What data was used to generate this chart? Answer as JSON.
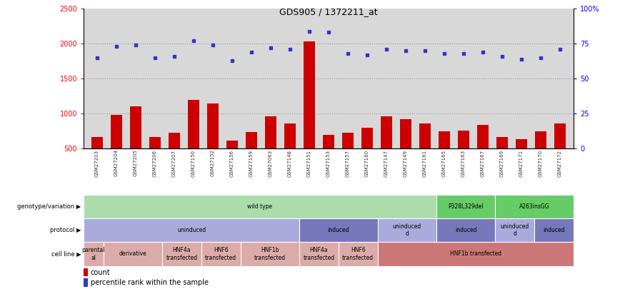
{
  "title": "GDS905 / 1372211_at",
  "samples": [
    "GSM27203",
    "GSM27204",
    "GSM27205",
    "GSM27206",
    "GSM27207",
    "GSM27150",
    "GSM27152",
    "GSM27156",
    "GSM27159",
    "GSM27063",
    "GSM27148",
    "GSM27151",
    "GSM27153",
    "GSM27157",
    "GSM27160",
    "GSM27147",
    "GSM27149",
    "GSM27161",
    "GSM27165",
    "GSM27163",
    "GSM27167",
    "GSM27169",
    "GSM27171",
    "GSM27170",
    "GSM27172"
  ],
  "counts": [
    660,
    980,
    1100,
    660,
    730,
    1200,
    1140,
    610,
    740,
    960,
    860,
    2030,
    700,
    730,
    800,
    960,
    920,
    860,
    750,
    760,
    840,
    660,
    630,
    750,
    860
  ],
  "percentiles": [
    65,
    73,
    74,
    65,
    66,
    77,
    74,
    63,
    69,
    72,
    71,
    84,
    83,
    68,
    67,
    71,
    70,
    70,
    68,
    68,
    69,
    66,
    64,
    65,
    71
  ],
  "ylim_left": [
    500,
    2500
  ],
  "ylim_right": [
    0,
    100
  ],
  "yticks_left": [
    500,
    1000,
    1500,
    2000,
    2500
  ],
  "yticks_right": [
    0,
    25,
    50,
    75,
    100
  ],
  "bar_color": "#cc0000",
  "dot_color": "#3333cc",
  "grid_color": "#888888",
  "ax_bg_color": "#d8d8d8",
  "genotype_segments": [
    {
      "text": "wild type",
      "start": 0,
      "end": 18,
      "color": "#aaddaa"
    },
    {
      "text": "P328L329del",
      "start": 18,
      "end": 21,
      "color": "#66cc66"
    },
    {
      "text": "A263insGG",
      "start": 21,
      "end": 25,
      "color": "#66cc66"
    }
  ],
  "protocol_segments": [
    {
      "text": "uninduced",
      "start": 0,
      "end": 11,
      "color": "#aaaadd"
    },
    {
      "text": "induced",
      "start": 11,
      "end": 15,
      "color": "#7777bb"
    },
    {
      "text": "uninduced\nd",
      "start": 15,
      "end": 18,
      "color": "#aaaadd"
    },
    {
      "text": "induced",
      "start": 18,
      "end": 21,
      "color": "#7777bb"
    },
    {
      "text": "uninduced\nd",
      "start": 21,
      "end": 23,
      "color": "#aaaadd"
    },
    {
      "text": "induced",
      "start": 23,
      "end": 25,
      "color": "#7777bb"
    }
  ],
  "cellline_segments": [
    {
      "text": "parental\nal",
      "start": 0,
      "end": 1,
      "color": "#ddaaaa"
    },
    {
      "text": "derivative",
      "start": 1,
      "end": 4,
      "color": "#ddaaaa"
    },
    {
      "text": "HNF4a\ntransfected",
      "start": 4,
      "end": 6,
      "color": "#ddaaaa"
    },
    {
      "text": "HNF6\ntransfected",
      "start": 6,
      "end": 8,
      "color": "#ddaaaa"
    },
    {
      "text": "HNF1b\ntransfected",
      "start": 8,
      "end": 11,
      "color": "#ddaaaa"
    },
    {
      "text": "HNF4a\ntransfected",
      "start": 11,
      "end": 13,
      "color": "#ddaaaa"
    },
    {
      "text": "HNF6\ntransfected",
      "start": 13,
      "end": 15,
      "color": "#ddaaaa"
    },
    {
      "text": "HNF1b transfected",
      "start": 15,
      "end": 25,
      "color": "#cc7777"
    }
  ],
  "row_labels": [
    "genotype/variation",
    "protocol",
    "cell line"
  ]
}
